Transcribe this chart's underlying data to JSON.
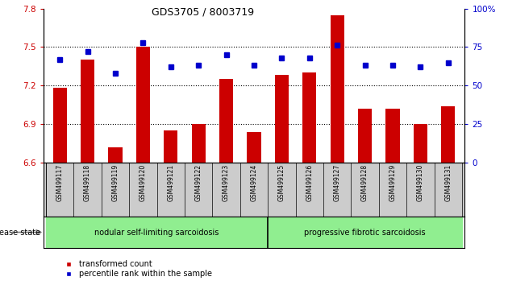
{
  "title": "GDS3705 / 8003719",
  "samples": [
    "GSM499117",
    "GSM499118",
    "GSM499119",
    "GSM499120",
    "GSM499121",
    "GSM499122",
    "GSM499123",
    "GSM499124",
    "GSM499125",
    "GSM499126",
    "GSM499127",
    "GSM499128",
    "GSM499129",
    "GSM499130",
    "GSM499131"
  ],
  "bar_values": [
    7.18,
    7.4,
    6.72,
    7.5,
    6.85,
    6.9,
    7.25,
    6.84,
    7.28,
    7.3,
    7.75,
    7.02,
    7.02,
    6.9,
    7.04
  ],
  "percentile_values": [
    67,
    72,
    58,
    78,
    62,
    63,
    70,
    63,
    68,
    68,
    76,
    63,
    63,
    62,
    65
  ],
  "bar_color": "#cc0000",
  "percentile_color": "#0000cc",
  "ylim_left": [
    6.6,
    7.8
  ],
  "ylim_right": [
    0,
    100
  ],
  "yticks_left": [
    6.6,
    6.9,
    7.2,
    7.5,
    7.8
  ],
  "ytick_labels_left": [
    "6.6",
    "6.9",
    "7.2",
    "7.5",
    "7.8"
  ],
  "yticks_right": [
    0,
    25,
    50,
    75,
    100
  ],
  "ytick_labels_right": [
    "0",
    "25",
    "50",
    "75",
    "100%"
  ],
  "group1_label": "nodular self-limiting sarcoidosis",
  "group2_label": "progressive fibrotic sarcoidosis",
  "group1_indices": [
    0,
    1,
    2,
    3,
    4,
    5,
    6,
    7
  ],
  "group2_indices": [
    8,
    9,
    10,
    11,
    12,
    13,
    14
  ],
  "group1_color": "#90ee90",
  "group2_color": "#90ee90",
  "disease_state_label": "disease state",
  "legend_bar_label": "transformed count",
  "legend_pct_label": "percentile rank within the sample",
  "tick_bg_color": "#cccccc",
  "dotted_gridlines": [
    6.9,
    7.2,
    7.5
  ]
}
